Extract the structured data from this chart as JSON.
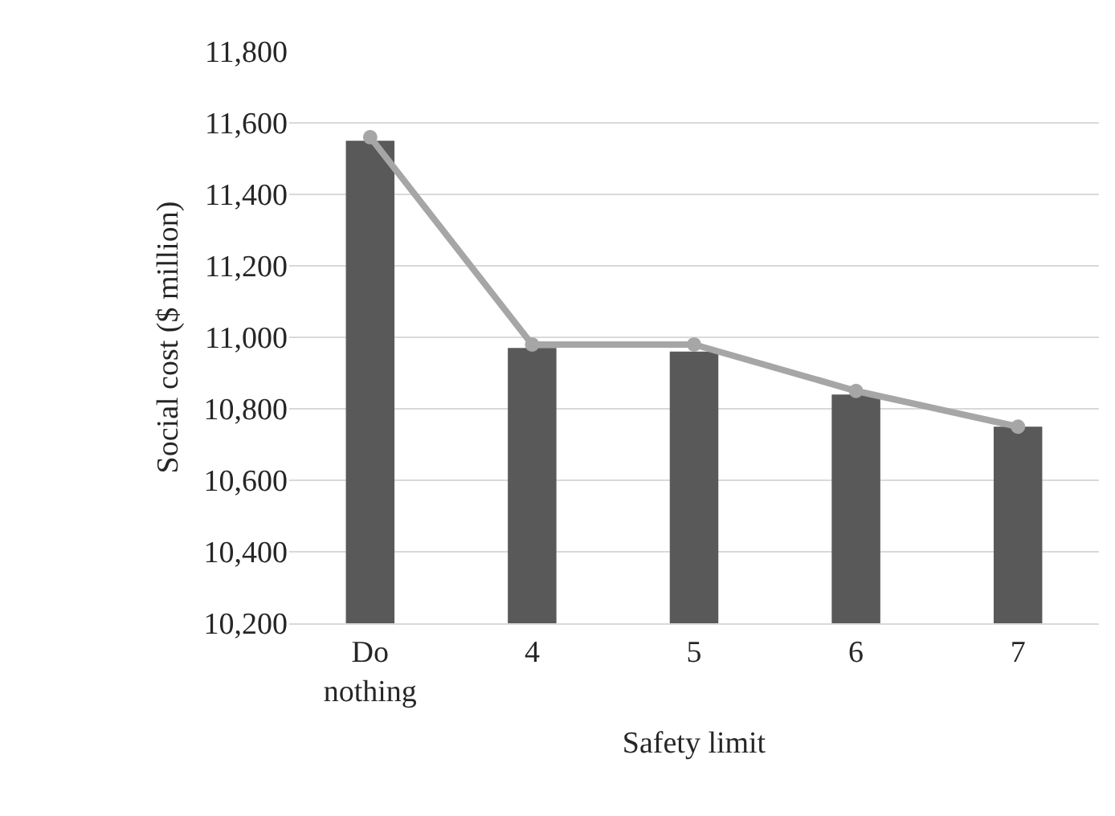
{
  "chart_data": {
    "type": "bar",
    "xlabel": "Safety limit",
    "ylabel": "Social cost ($ million)",
    "categories": [
      "Do nothing",
      "4",
      "5",
      "6",
      "7"
    ],
    "series": [
      {
        "color": "#595959",
        "values": [
          11550,
          10970,
          10960,
          10840,
          10750
        ]
      },
      {
        "type": "line",
        "color": "#a6a6a6",
        "values": [
          11560,
          10980,
          10980,
          10850,
          10750
        ],
        "marker": "circle"
      }
    ],
    "ylim": [
      10200,
      11800
    ],
    "yticks": [
      {
        "value": 10200,
        "label": "10,200"
      },
      {
        "value": 10400,
        "label": "10,400"
      },
      {
        "value": 10600,
        "label": "10,600"
      },
      {
        "value": 10800,
        "label": "10,800"
      },
      {
        "value": 11000,
        "label": "11,000"
      },
      {
        "value": 11200,
        "label": "11,200"
      },
      {
        "value": 11400,
        "label": "11,400"
      },
      {
        "value": 11600,
        "label": "11,600"
      },
      {
        "value": 11800,
        "label": "11,800"
      }
    ],
    "grid": "y"
  }
}
